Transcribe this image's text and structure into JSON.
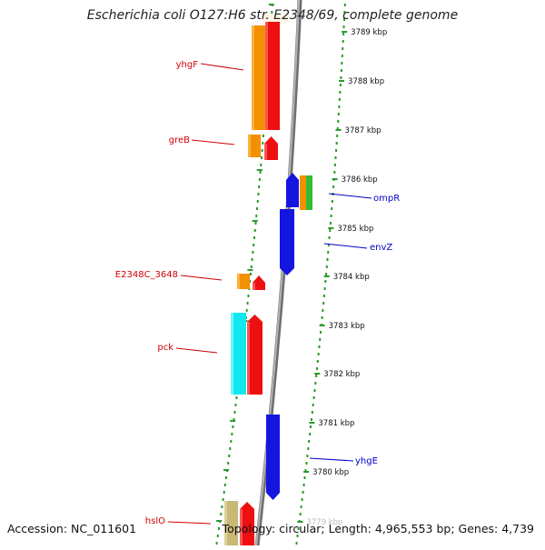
{
  "title": "Escherichia coli O127:H6 str. E2348/69, complete genome",
  "footer": {
    "accession": "Accession: NC_011601",
    "stats": "Topology: circular; Length: 4,965,553 bp; Genes: 4,739"
  },
  "colors": {
    "ruler": "#2a9a2a",
    "backbone": "#808080",
    "gene_label_left": "#d00000",
    "gene_label_right": "#0000c8",
    "orange": "#f39000",
    "red": "#ee1010",
    "blue": "#1515e0",
    "green": "#33bb33",
    "cyan": "#10e8f0",
    "olive": "#c8b878"
  },
  "ruler": {
    "labels": [
      "3789 kbp",
      "3788 kbp",
      "3787 kbp",
      "3786 kbp",
      "3785 kbp",
      "3784 kbp",
      "3783 kbp",
      "3782 kbp",
      "3781 kbp",
      "3780 kbp",
      "3779 kbp"
    ]
  },
  "genes_left": [
    "yhgF",
    "greB",
    "E2348C_3648",
    "pck",
    "hslO"
  ],
  "genes_right": [
    "ompR",
    "envZ",
    "yhgE"
  ]
}
